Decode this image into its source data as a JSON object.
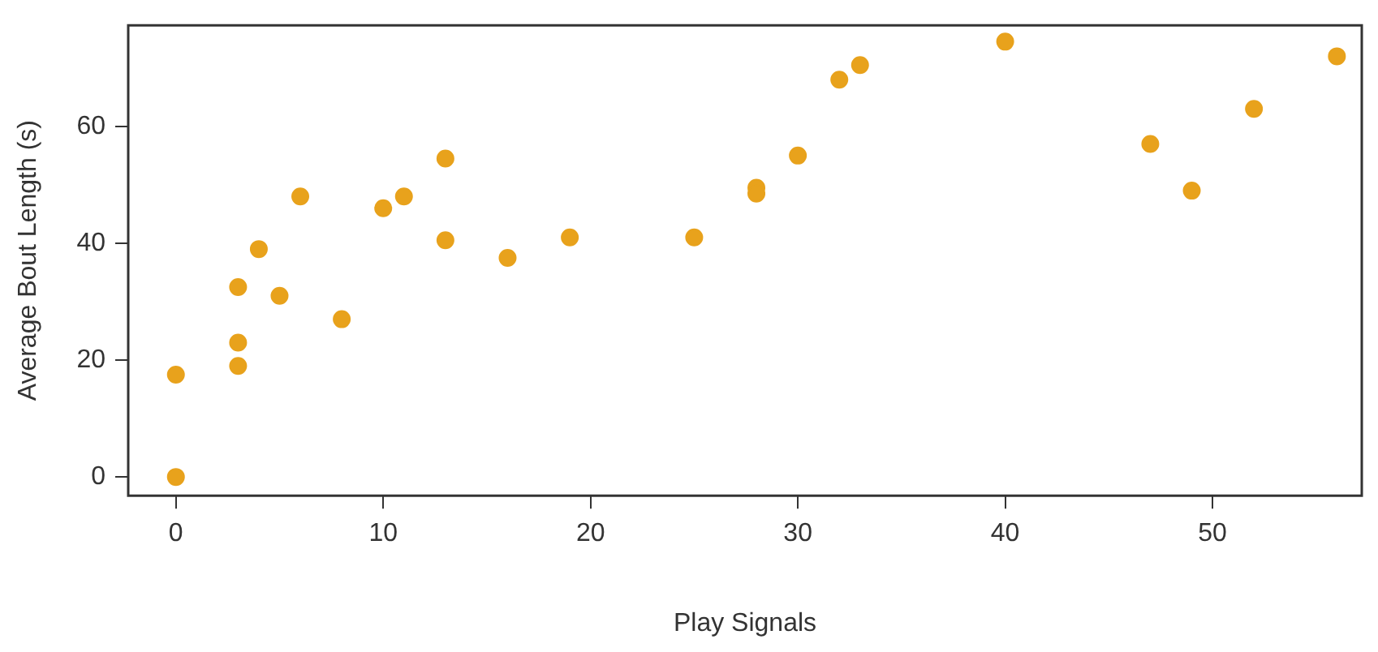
{
  "chart_data": {
    "type": "scatter",
    "xlabel": "Play Signals",
    "ylabel": "Average Bout Length (s)",
    "x": [
      0,
      0,
      3,
      3,
      3,
      4,
      5,
      6,
      8,
      10,
      11,
      13,
      13,
      16,
      19,
      25,
      28,
      28,
      30,
      32,
      33,
      40,
      47,
      49,
      52,
      56
    ],
    "series": [
      {
        "color": "#e8a21c",
        "values": [
          17.5,
          0,
          32.5,
          23,
          19,
          39,
          31,
          48,
          27,
          46,
          48,
          54.5,
          40.5,
          37.5,
          41,
          41,
          49.5,
          48.5,
          55,
          68,
          70.5,
          74.5,
          57,
          49,
          63,
          72
        ]
      }
    ],
    "xlim": [
      -2.3,
      57.2
    ],
    "ylim": [
      -3.2,
      77.3
    ],
    "xticks": [
      0,
      10,
      20,
      30,
      40,
      50
    ],
    "yticks": [
      0,
      20,
      40,
      60
    ],
    "grid": false,
    "legend": false,
    "marker": "circle"
  }
}
